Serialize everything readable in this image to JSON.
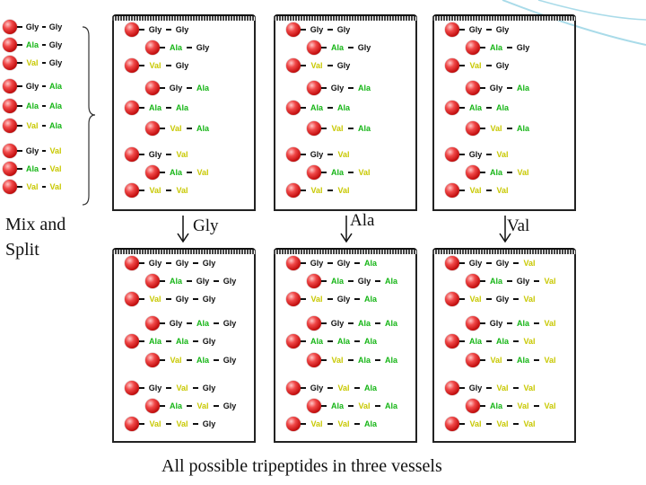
{
  "colors": {
    "Gly": "#111111",
    "Ala": "#16b516",
    "Val": "#c8c800"
  },
  "mix_label_line1": "Mix and",
  "mix_label_line2": "Split",
  "caption": "All possible tripeptides in three vessels",
  "split_labels": [
    "Gly",
    "Ala",
    "Val"
  ],
  "left_column": [
    [
      "Gly",
      "Gly"
    ],
    [
      "Ala",
      "Gly"
    ],
    [
      "Val",
      "Gly"
    ],
    [
      "Gly",
      "Ala"
    ],
    [
      "Ala",
      "Ala"
    ],
    [
      "Val",
      "Ala"
    ],
    [
      "Gly",
      "Val"
    ],
    [
      "Ala",
      "Val"
    ],
    [
      "Val",
      "Val"
    ]
  ],
  "top_vessels": [
    {
      "name": "Gly",
      "chains": [
        [
          "Gly",
          "Gly"
        ],
        [
          "Ala",
          "Gly"
        ],
        [
          "Val",
          "Gly"
        ],
        [
          "Gly",
          "Ala"
        ],
        [
          "Ala",
          "Ala"
        ],
        [
          "Val",
          "Ala"
        ],
        [
          "Gly",
          "Val"
        ],
        [
          "Ala",
          "Val"
        ],
        [
          "Val",
          "Val"
        ]
      ]
    },
    {
      "name": "Ala",
      "chains": [
        [
          "Gly",
          "Gly"
        ],
        [
          "Ala",
          "Gly"
        ],
        [
          "Val",
          "Gly"
        ],
        [
          "Gly",
          "Ala"
        ],
        [
          "Ala",
          "Ala"
        ],
        [
          "Val",
          "Ala"
        ],
        [
          "Gly",
          "Val"
        ],
        [
          "Ala",
          "Val"
        ],
        [
          "Val",
          "Val"
        ]
      ]
    },
    {
      "name": "Val",
      "chains": [
        [
          "Gly",
          "Gly"
        ],
        [
          "Ala",
          "Gly"
        ],
        [
          "Val",
          "Gly"
        ],
        [
          "Gly",
          "Ala"
        ],
        [
          "Ala",
          "Ala"
        ],
        [
          "Val",
          "Ala"
        ],
        [
          "Gly",
          "Val"
        ],
        [
          "Ala",
          "Val"
        ],
        [
          "Val",
          "Val"
        ]
      ]
    }
  ],
  "bottom_vessels": [
    {
      "name": "Gly",
      "chains": [
        [
          "Gly",
          "Gly",
          "Gly"
        ],
        [
          "Ala",
          "Gly",
          "Gly"
        ],
        [
          "Val",
          "Gly",
          "Gly"
        ],
        [
          "Gly",
          "Ala",
          "Gly"
        ],
        [
          "Ala",
          "Ala",
          "Gly"
        ],
        [
          "Val",
          "Ala",
          "Gly"
        ],
        [
          "Gly",
          "Val",
          "Gly"
        ],
        [
          "Ala",
          "Val",
          "Gly"
        ],
        [
          "Val",
          "Val",
          "Gly"
        ]
      ]
    },
    {
      "name": "Ala",
      "chains": [
        [
          "Gly",
          "Gly",
          "Ala"
        ],
        [
          "Ala",
          "Gly",
          "Ala"
        ],
        [
          "Val",
          "Gly",
          "Ala"
        ],
        [
          "Gly",
          "Ala",
          "Ala"
        ],
        [
          "Ala",
          "Ala",
          "Ala"
        ],
        [
          "Val",
          "Ala",
          "Ala"
        ],
        [
          "Gly",
          "Val",
          "Ala"
        ],
        [
          "Ala",
          "Val",
          "Ala"
        ],
        [
          "Val",
          "Val",
          "Ala"
        ]
      ]
    },
    {
      "name": "Val",
      "chains": [
        [
          "Gly",
          "Gly",
          "Val"
        ],
        [
          "Ala",
          "Gly",
          "Val"
        ],
        [
          "Val",
          "Gly",
          "Val"
        ],
        [
          "Gly",
          "Ala",
          "Val"
        ],
        [
          "Ala",
          "Ala",
          "Val"
        ],
        [
          "Val",
          "Ala",
          "Val"
        ],
        [
          "Gly",
          "Val",
          "Val"
        ],
        [
          "Ala",
          "Val",
          "Val"
        ],
        [
          "Val",
          "Val",
          "Val"
        ]
      ]
    }
  ]
}
